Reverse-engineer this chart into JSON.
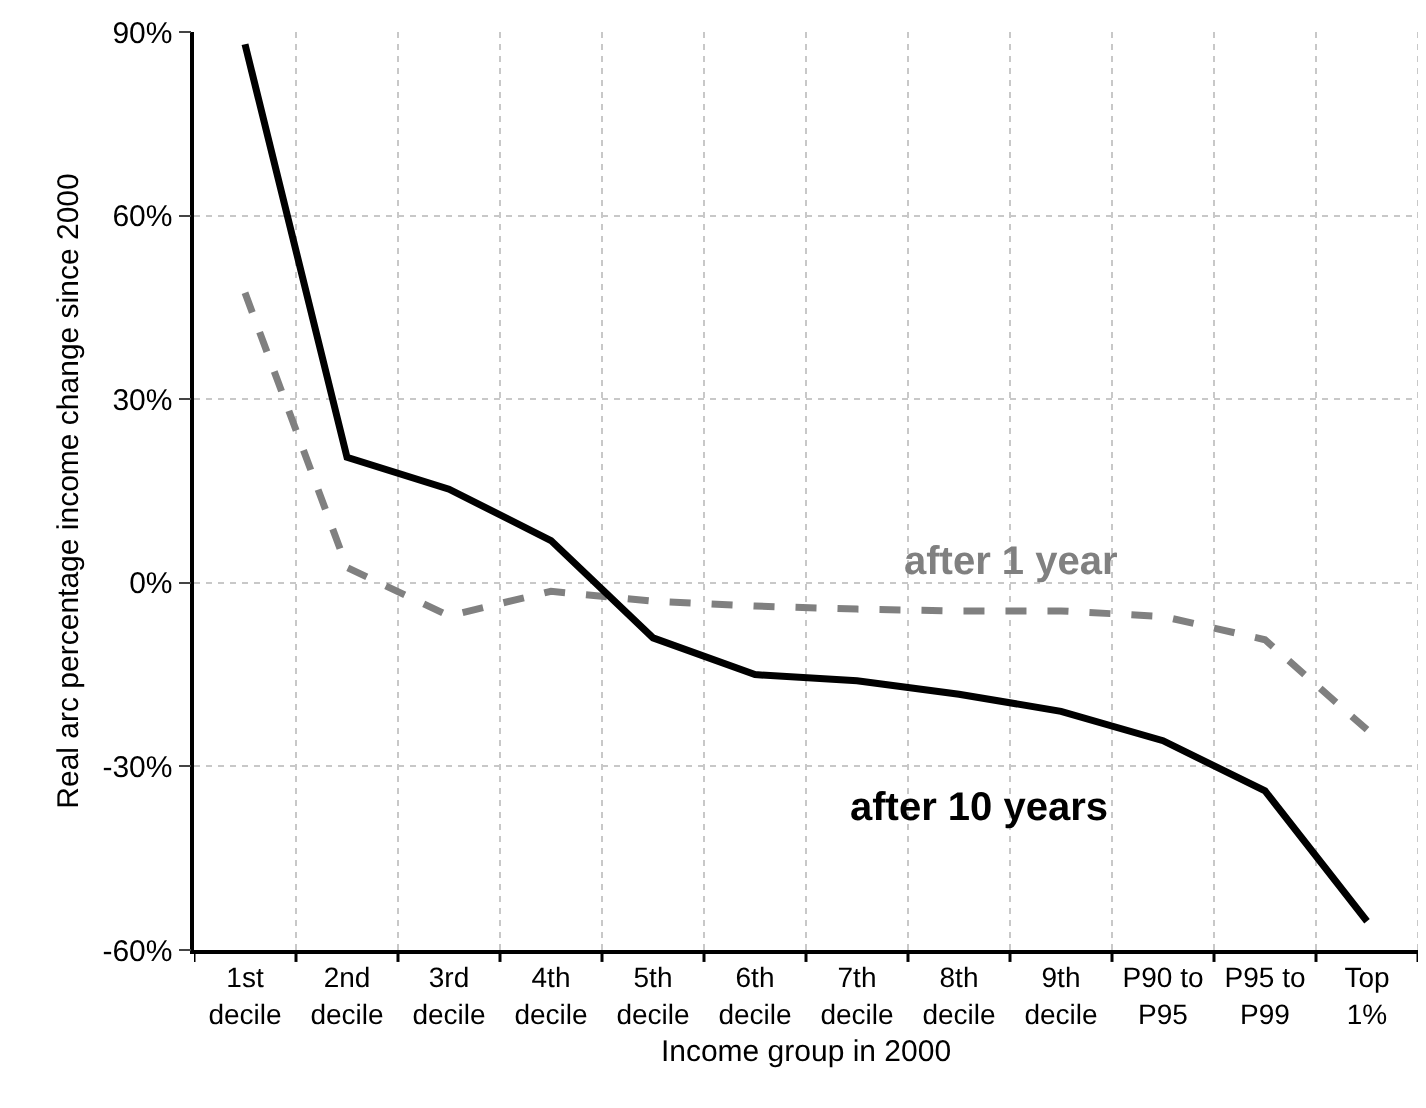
{
  "chart_data": {
    "type": "line",
    "xlabel": "Income group in 2000",
    "ylabel": "Real arc percentage income change since 2000",
    "categories": [
      "1st decile",
      "2nd decile",
      "3rd decile",
      "4th decile",
      "5th decile",
      "6th decile",
      "7th decile",
      "8th decile",
      "9th decile",
      "P90 to P95",
      "P95 to P99",
      "Top 1%"
    ],
    "series": [
      {
        "name": "after 1 year",
        "color": "#808080",
        "line_style": "dashed",
        "values": [
          47.4,
          2.5,
          -5.4,
          -1.4,
          -3,
          -3.8,
          -4.3,
          -4.6,
          -4.6,
          -5.5,
          -9.3,
          -24
        ]
      },
      {
        "name": "after 10 years",
        "color": "#000000",
        "line_style": "solid",
        "values": [
          88,
          20.5,
          15.3,
          6.9,
          -9,
          -15,
          -16,
          -18.2,
          -21,
          -25.8,
          -34,
          -55.3
        ]
      }
    ],
    "ylim": [
      -60,
      90
    ],
    "yticks": [
      {
        "value": -60,
        "label": "-60%"
      },
      {
        "value": -30,
        "label": "-30%"
      },
      {
        "value": 0,
        "label": "0%"
      },
      {
        "value": 30,
        "label": "30%"
      },
      {
        "value": 60,
        "label": "60%"
      },
      {
        "value": 90,
        "label": "90%"
      }
    ],
    "grid": true,
    "legend": false,
    "marker": "none"
  }
}
